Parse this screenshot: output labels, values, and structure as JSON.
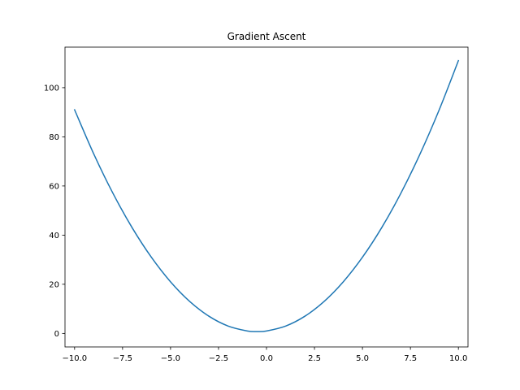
{
  "chart_data": {
    "type": "line",
    "title": "Gradient Ascent",
    "xlabel": "",
    "ylabel": "",
    "xlim": [
      -10.5,
      10.5
    ],
    "ylim": [
      -5.5,
      116.5
    ],
    "xticks": [
      {
        "value": -10.0,
        "label": "−10.0"
      },
      {
        "value": -7.5,
        "label": "−7.5"
      },
      {
        "value": -5.0,
        "label": "−5.0"
      },
      {
        "value": -2.5,
        "label": "−2.5"
      },
      {
        "value": 0.0,
        "label": "0.0"
      },
      {
        "value": 2.5,
        "label": "2.5"
      },
      {
        "value": 5.0,
        "label": "5.0"
      },
      {
        "value": 7.5,
        "label": "7.5"
      },
      {
        "value": 10.0,
        "label": "10.0"
      }
    ],
    "yticks": [
      {
        "value": 0,
        "label": "0"
      },
      {
        "value": 20,
        "label": "20"
      },
      {
        "value": 40,
        "label": "40"
      },
      {
        "value": 60,
        "label": "60"
      },
      {
        "value": 80,
        "label": "80"
      },
      {
        "value": 100,
        "label": "100"
      }
    ],
    "grid": false,
    "series": [
      {
        "color": "#1f77b4",
        "x": [
          -10,
          -9,
          -8,
          -7,
          -6,
          -5,
          -4,
          -3,
          -2,
          -1,
          -0.5,
          0,
          1,
          2,
          3,
          4,
          5,
          6,
          7,
          8,
          9,
          10
        ],
        "y": [
          91,
          73,
          57,
          43,
          31,
          21,
          13,
          7,
          3,
          1,
          0.75,
          1,
          3,
          7,
          13,
          21,
          31,
          43,
          57,
          73,
          91,
          111
        ]
      }
    ]
  }
}
